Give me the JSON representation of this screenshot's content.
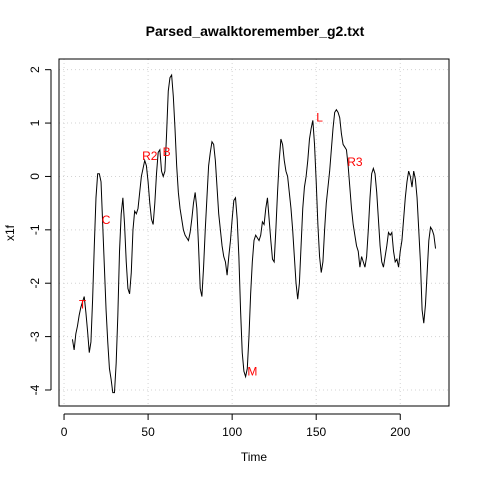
{
  "chart_data": {
    "type": "line",
    "title": "Parsed_awalktoremember_g2.txt",
    "xlabel": "Time",
    "ylabel": "x1f",
    "xlim": [
      -3,
      229
    ],
    "ylim": [
      -4.3,
      2.2
    ],
    "xticks": [
      0,
      50,
      100,
      150,
      200
    ],
    "xtick_labels": [
      "0",
      "50",
      "100",
      "150",
      "200"
    ],
    "yticks": [
      -4,
      -3,
      -2,
      -1,
      0,
      1,
      2
    ],
    "ytick_labels": [
      "-4",
      "-3",
      "-2",
      "-1",
      "0",
      "1",
      "2"
    ],
    "grid": true,
    "line_color": "#000000",
    "annotation_color": "#ff0000",
    "series": [
      {
        "x": [
          5,
          6,
          7,
          8,
          9,
          10,
          11,
          12,
          13,
          14,
          15,
          16,
          17,
          18,
          19,
          20,
          21,
          22,
          23,
          24,
          25,
          26,
          27,
          28,
          29,
          30,
          31,
          32,
          33,
          34,
          35,
          36,
          37,
          38,
          39,
          40,
          41,
          42,
          43,
          44,
          45,
          46,
          47,
          48,
          49,
          50,
          51,
          52,
          53,
          54,
          55,
          56,
          57,
          58,
          59,
          60,
          61,
          62,
          63,
          64,
          65,
          66,
          67,
          68,
          69,
          70,
          71,
          72,
          73,
          74,
          75,
          76,
          77,
          78,
          79,
          80,
          81,
          82,
          83,
          84,
          85,
          86,
          87,
          88,
          89,
          90,
          91,
          92,
          93,
          94,
          95,
          96,
          97,
          98,
          99,
          100,
          101,
          102,
          103,
          104,
          105,
          106,
          107,
          108,
          109,
          110,
          111,
          112,
          113,
          114,
          115,
          116,
          117,
          118,
          119,
          120,
          121,
          122,
          123,
          124,
          125,
          126,
          127,
          128,
          129,
          130,
          131,
          132,
          133,
          134,
          135,
          136,
          137,
          138,
          139,
          140,
          141,
          142,
          143,
          144,
          145,
          146,
          147,
          148,
          149,
          150,
          151,
          152,
          153,
          154,
          155,
          156,
          157,
          158,
          159,
          160,
          161,
          162,
          163,
          164,
          165,
          166,
          167,
          168,
          169,
          170,
          171,
          172,
          173,
          174,
          175,
          176,
          177,
          178,
          179,
          180,
          181,
          182,
          183,
          184,
          185,
          186,
          187,
          188,
          189,
          190,
          191,
          192,
          193,
          194,
          195,
          196,
          197,
          198,
          199,
          200,
          201,
          202,
          203,
          204,
          205,
          206,
          207,
          208,
          209,
          210,
          211,
          212,
          213,
          214,
          215,
          216,
          217,
          218,
          219,
          220,
          221
        ],
        "y": [
          -3.05,
          -3.25,
          -2.95,
          -2.8,
          -2.6,
          -2.45,
          -2.35,
          -2.25,
          -2.55,
          -2.9,
          -3.3,
          -3.1,
          -2.3,
          -1.3,
          -0.4,
          0.05,
          0.05,
          -0.1,
          -0.9,
          -1.7,
          -2.5,
          -3.1,
          -3.6,
          -3.8,
          -4.05,
          -4.05,
          -3.5,
          -2.6,
          -1.4,
          -0.7,
          -0.4,
          -0.9,
          -1.6,
          -2.1,
          -2.2,
          -1.8,
          -1.0,
          -0.65,
          -0.7,
          -0.6,
          -0.3,
          0.0,
          0.15,
          0.3,
          0.2,
          -0.1,
          -0.5,
          -0.8,
          -0.9,
          -0.5,
          0.05,
          0.45,
          0.5,
          0.1,
          0.0,
          0.1,
          0.8,
          1.6,
          1.85,
          1.9,
          1.5,
          0.9,
          0.2,
          -0.3,
          -0.6,
          -0.8,
          -1.0,
          -1.1,
          -1.15,
          -1.2,
          -1.05,
          -0.8,
          -0.5,
          -0.3,
          -0.6,
          -1.3,
          -2.1,
          -2.25,
          -1.7,
          -1.0,
          -0.4,
          0.2,
          0.45,
          0.65,
          0.6,
          0.3,
          -0.2,
          -0.7,
          -1.0,
          -1.3,
          -1.5,
          -1.6,
          -1.85,
          -1.5,
          -1.2,
          -0.8,
          -0.45,
          -0.4,
          -0.8,
          -1.5,
          -2.5,
          -3.3,
          -3.65,
          -3.75,
          -3.6,
          -3.0,
          -2.2,
          -1.6,
          -1.2,
          -1.1,
          -1.15,
          -1.2,
          -1.1,
          -0.85,
          -0.9,
          -0.6,
          -0.4,
          -0.8,
          -1.2,
          -1.55,
          -1.6,
          -1.0,
          -0.3,
          0.3,
          0.7,
          0.6,
          0.3,
          0.1,
          0.0,
          -0.3,
          -0.6,
          -1.0,
          -1.5,
          -2.0,
          -2.3,
          -2.0,
          -1.3,
          -0.6,
          -0.2,
          0.0,
          0.3,
          0.7,
          0.9,
          1.05,
          0.6,
          -0.1,
          -0.9,
          -1.5,
          -1.8,
          -1.6,
          -1.0,
          -0.5,
          -0.2,
          0.1,
          0.5,
          0.9,
          1.2,
          1.25,
          1.2,
          1.1,
          0.8,
          0.6,
          0.55,
          0.5,
          0.2,
          -0.2,
          -0.6,
          -0.9,
          -1.1,
          -1.3,
          -1.4,
          -1.7,
          -1.5,
          -1.6,
          -1.7,
          -1.5,
          -1.0,
          -0.4,
          0.05,
          0.15,
          0.05,
          -0.3,
          -0.8,
          -1.3,
          -1.6,
          -1.7,
          -1.5,
          -1.3,
          -1.05,
          -1.1,
          -1.05,
          -1.4,
          -1.6,
          -1.55,
          -1.7,
          -1.4,
          -1.2,
          -0.8,
          -0.4,
          -0.1,
          0.1,
          0.0,
          -0.2,
          0.1,
          -0.05,
          -0.4,
          -1.0,
          -1.6,
          -2.5,
          -2.75,
          -2.4,
          -1.8,
          -1.2,
          -0.95,
          -1.0,
          -1.1,
          -1.35
        ]
      }
    ],
    "annotations": [
      {
        "label": "T",
        "x": 11,
        "y": -2.4
      },
      {
        "label": "C",
        "x": 25,
        "y": -0.82
      },
      {
        "label": "R2",
        "x": 51,
        "y": 0.38
      },
      {
        "label": "B",
        "x": 61,
        "y": 0.46
      },
      {
        "label": "M",
        "x": 112,
        "y": -3.65
      },
      {
        "label": "L",
        "x": 152,
        "y": 1.1
      },
      {
        "label": "R3",
        "x": 173,
        "y": 0.27
      }
    ]
  }
}
